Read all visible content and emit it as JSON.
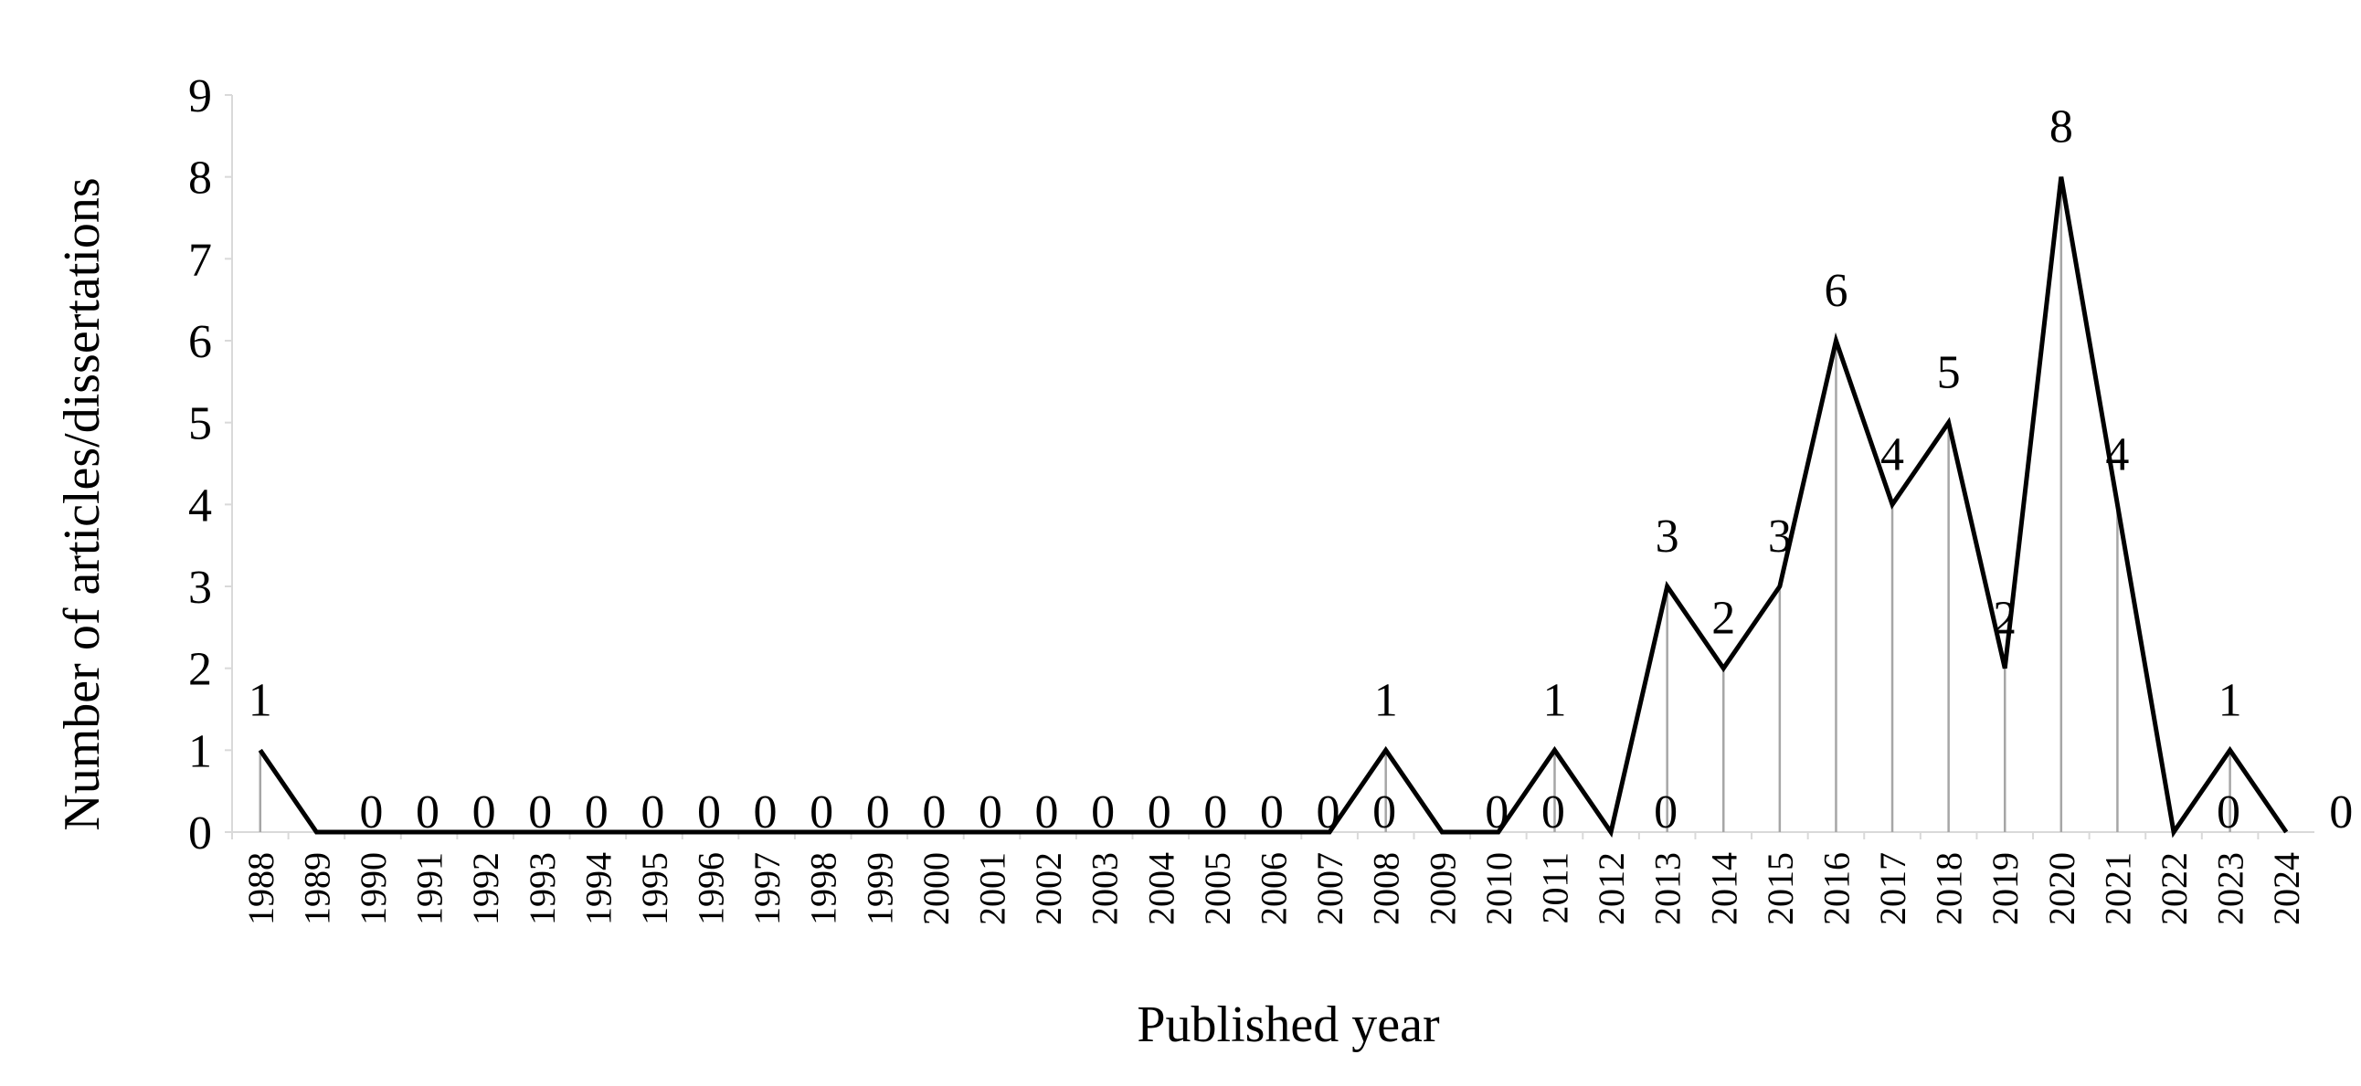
{
  "chart_data": {
    "type": "line",
    "x_label": "Published year",
    "y_label": "Number of articles/dissertations",
    "categories": [
      "1988",
      "1989",
      "1990",
      "1991",
      "1992",
      "1993",
      "1994",
      "1995",
      "1996",
      "1997",
      "1998",
      "1999",
      "2000",
      "2001",
      "2002",
      "2003",
      "2004",
      "2005",
      "2006",
      "2007",
      "2008",
      "2009",
      "2010",
      "2011",
      "2012",
      "2013",
      "2014",
      "2015",
      "2016",
      "2017",
      "2018",
      "2019",
      "2020",
      "2021",
      "2022",
      "2023",
      "2024"
    ],
    "values": [
      1,
      0,
      0,
      0,
      0,
      0,
      0,
      0,
      0,
      0,
      0,
      0,
      0,
      0,
      0,
      0,
      0,
      0,
      0,
      0,
      1,
      0,
      0,
      1,
      0,
      3,
      2,
      3,
      6,
      4,
      5,
      2,
      8,
      4,
      0,
      1,
      0
    ],
    "color": "#000000",
    "drop_line_color": "#a6a6a6",
    "ylim": [
      0,
      9
    ],
    "yticks": [
      0,
      1,
      2,
      3,
      4,
      5,
      6,
      7,
      8,
      9
    ],
    "grid": false
  }
}
